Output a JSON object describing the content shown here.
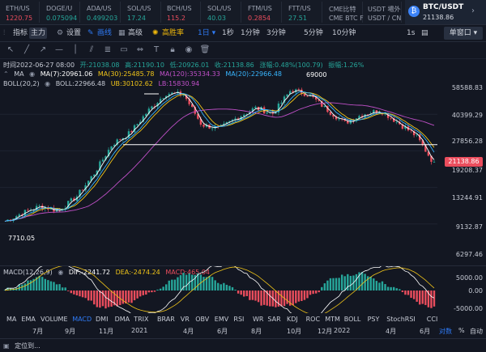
{
  "tickers": [
    {
      "name": "ETH/US",
      "price": "1220.75",
      "color": "#ea4d5d"
    },
    {
      "name": "DOGE/U",
      "price": "0.075094",
      "color": "#26a69a"
    },
    {
      "name": "ADA/US",
      "price": "0.499203",
      "color": "#26a69a"
    },
    {
      "name": "SOL/US",
      "price": "17.24",
      "color": "#26a69a"
    },
    {
      "name": "BCH/US",
      "price": "115.2",
      "color": "#ea4d5d"
    },
    {
      "name": "SOL/US",
      "price": "40.03",
      "color": "#26a69a"
    },
    {
      "name": "FTM/US",
      "price": "0.2854",
      "color": "#ea4d5d"
    },
    {
      "name": "FTT/US",
      "price": "27.51",
      "color": "#26a69a"
    },
    {
      "name": "CME比特",
      "price": "CME BTC F",
      "color": "#9ea4b3"
    },
    {
      "name": "USDT 場外",
      "price": "USDT / CN",
      "color": "#9ea4b3"
    }
  ],
  "selected_symbol": {
    "pair": "BTC/USDT",
    "price": "21138.86"
  },
  "toolbar": {
    "indicator": "指标",
    "indicator_badge": "主力",
    "settings": "设置",
    "drawing": "画线",
    "advanced": "高级",
    "win_rate": "高胜率",
    "interval_selected": "1日",
    "intervals": [
      "1秒",
      "1分钟",
      "3分钟",
      "5分钟",
      "10分钟"
    ],
    "interval_right": "1s",
    "single_window": "单窗口"
  },
  "info_line": {
    "time": "时间2022-06-27 08:00",
    "open": "开:21038.08",
    "high": "高:21190.10",
    "low": "低:20926.01",
    "close": "收:21138.86",
    "change": "涨幅:0.48%(100.79)",
    "amplitude": "振幅:1.26%"
  },
  "ma_line": {
    "label": "MA",
    "ma7": "MA(7):20961.06",
    "ma30": "MA(30):25485.78",
    "ma120": "MA(120):35334.33",
    "ma20": "MA(20):22966.48"
  },
  "boll_line": {
    "label": "BOLL(20,2)",
    "boll": "BOLL:22966.48",
    "ub": "UB:30102.62",
    "lb": "LB:15830.94"
  },
  "chart_annotations": {
    "peak": "69000",
    "low": "7710.05"
  },
  "price_axis": [
    "58588.83",
    "40399.29",
    "27856.28",
    "19208.37",
    "13244.91",
    "9132.87",
    "6297.46"
  ],
  "current_price": "21138.86",
  "macd": {
    "label": "MACD(12,26,9)",
    "dif": "DIF:-2241.72",
    "dea": "DEA:-2474.24",
    "macd": "MACD:465.04",
    "axis": [
      "5000.00",
      "0.00",
      "-5000.00"
    ]
  },
  "indicators": [
    "MA",
    "EMA",
    "VOLUME",
    "MACD",
    "DMI",
    "DMA",
    "TRIX",
    "BRAR",
    "VR",
    "OBV",
    "EMV",
    "RSI",
    "WR",
    "SAR",
    "KDJ",
    "ROC",
    "MTM",
    "BOLL",
    "PSY",
    "StochRSI",
    "CCI"
  ],
  "selected_indicator": "MACD",
  "time_axis": [
    "7月",
    "9月",
    "11月",
    "2021",
    "4月",
    "6月",
    "8月",
    "10月",
    "12月",
    "2022",
    "4月",
    "6月"
  ],
  "axis_controls": [
    "对数",
    "%",
    "自动"
  ],
  "footer_label": "定位到...",
  "colors": {
    "up": "#26a69a",
    "down": "#ea4d5d",
    "accent": "#2f7bf6",
    "ma_yellow": "#f0c419",
    "ma_purple": "#c050c8",
    "ma_blue": "#38b6ff"
  },
  "chart_data": [
    {
      "type": "candlestick",
      "series": [
        {
          "name": "MA(7)",
          "color": "#ffffff"
        },
        {
          "name": "MA(30)",
          "color": "#f0c419"
        },
        {
          "name": "MA(120)",
          "color": "#c050c8"
        },
        {
          "name": "MA(20)",
          "color": "#38b6ff"
        }
      ],
      "price_ticks": [
        58588.83,
        40399.29,
        27856.28,
        19208.37,
        13244.91,
        9132.87,
        6297.46
      ],
      "ylim": [
        5500,
        70000
      ],
      "yscale": "log",
      "close_approx": [
        [
          "2020-06",
          9300
        ],
        [
          "2020-07",
          10500
        ],
        [
          "2020-08",
          11600
        ],
        [
          "2020-09",
          10800
        ],
        [
          "2020-10",
          13200
        ],
        [
          "2020-11",
          18500
        ],
        [
          "2020-12",
          28000
        ],
        [
          "2021-01",
          33000
        ],
        [
          "2021-02",
          45000
        ],
        [
          "2021-03",
          58000
        ],
        [
          "2021-04",
          57000
        ],
        [
          "2021-05",
          37000
        ],
        [
          "2021-06",
          35000
        ],
        [
          "2021-07",
          41000
        ],
        [
          "2021-08",
          47000
        ],
        [
          "2021-09",
          43500
        ],
        [
          "2021-10",
          61000
        ],
        [
          "2021-11",
          57000
        ],
        [
          "2021-12",
          46000
        ],
        [
          "2022-01",
          38000
        ],
        [
          "2022-02",
          43000
        ],
        [
          "2022-03",
          45500
        ],
        [
          "2022-04",
          38000
        ],
        [
          "2022-05",
          31500
        ],
        [
          "2022-06",
          21138.86
        ]
      ],
      "horizontal_line": 27856.28
    },
    {
      "type": "bar",
      "title": "MACD(12,26,9)",
      "ylim": [
        -5000,
        5000
      ],
      "series": [
        {
          "name": "DIF",
          "value": -2241.72
        },
        {
          "name": "DEA",
          "value": -2474.24
        },
        {
          "name": "MACD",
          "value": 465.04
        }
      ]
    }
  ]
}
